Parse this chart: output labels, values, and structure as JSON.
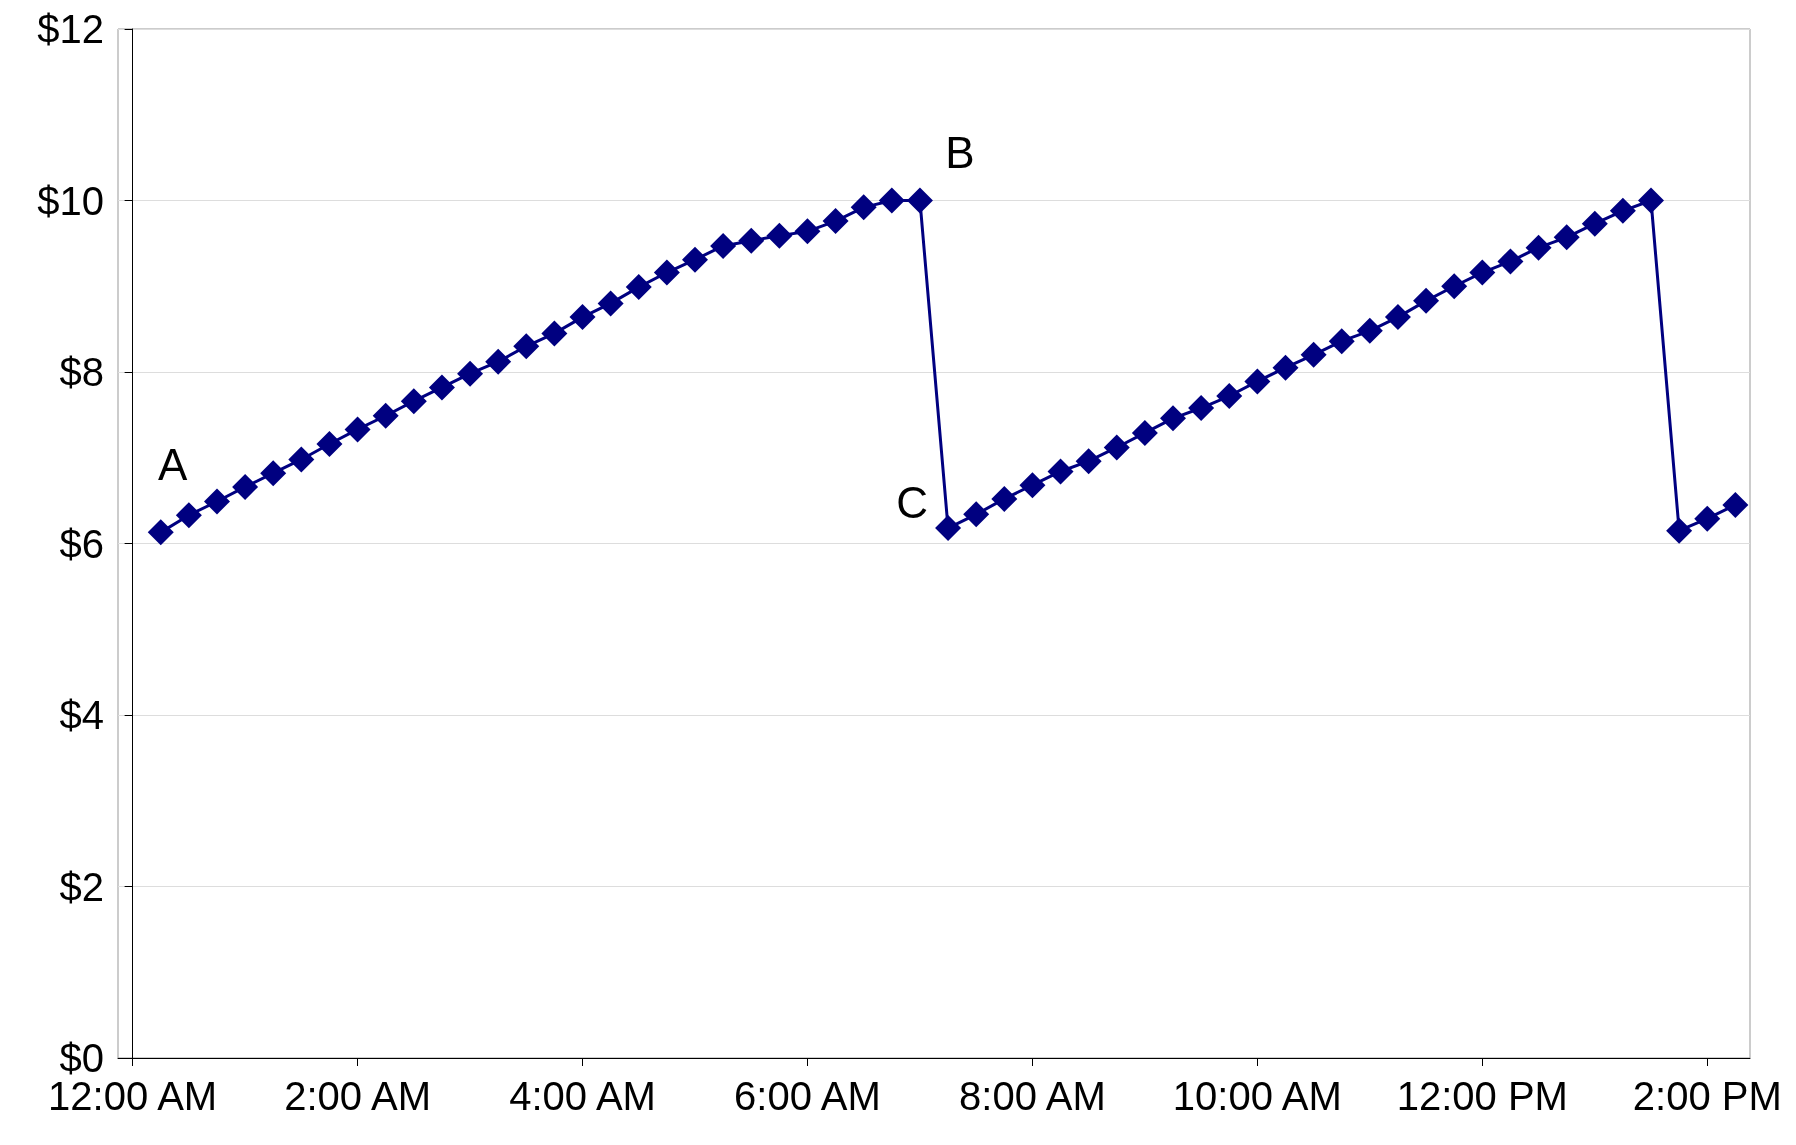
{
  "chart_data": {
    "type": "line",
    "marker": "diamond",
    "line_style": "solid",
    "grid": "y",
    "x": [
      0.25,
      0.5,
      0.75,
      1,
      1.25,
      1.5,
      1.75,
      2,
      2.25,
      2.5,
      2.75,
      3,
      3.25,
      3.5,
      3.75,
      4,
      4.25,
      4.5,
      4.75,
      5,
      5.25,
      5.5,
      5.75,
      6,
      6.25,
      6.5,
      6.75,
      7,
      7.25,
      7.5,
      7.75,
      8,
      8.25,
      8.5,
      8.75,
      9,
      9.25,
      9.5,
      9.75,
      10,
      10.25,
      10.5,
      10.75,
      11,
      11.25,
      11.5,
      11.75,
      12,
      12.25,
      12.5,
      12.75,
      13,
      13.25,
      13.5,
      13.75,
      14,
      14.25
    ],
    "series": [
      {
        "color": "#000080",
        "values": [
          6.13,
          6.33,
          6.49,
          6.66,
          6.82,
          6.98,
          7.16,
          7.33,
          7.49,
          7.66,
          7.82,
          7.98,
          8.12,
          8.3,
          8.45,
          8.64,
          8.8,
          8.99,
          9.16,
          9.31,
          9.47,
          9.53,
          9.59,
          9.64,
          9.76,
          9.92,
          10.0,
          10.0,
          6.18,
          6.34,
          6.52,
          6.68,
          6.84,
          6.96,
          7.12,
          7.29,
          7.46,
          7.58,
          7.72,
          7.89,
          8.05,
          8.2,
          8.36,
          8.48,
          8.64,
          8.83,
          9.0,
          9.16,
          9.29,
          9.45,
          9.57,
          9.73,
          9.88,
          10.0,
          6.15,
          6.29,
          6.45
        ]
      }
    ],
    "xlim": [
      -0.13,
      14.38
    ],
    "xticks": [
      {
        "value": 0,
        "label": "12:00 AM"
      },
      {
        "value": 2,
        "label": "2:00 AM"
      },
      {
        "value": 4,
        "label": "4:00 AM"
      },
      {
        "value": 6,
        "label": "6:00 AM"
      },
      {
        "value": 8,
        "label": "8:00 AM"
      },
      {
        "value": 10,
        "label": "10:00 AM"
      },
      {
        "value": 12,
        "label": "12:00 PM"
      },
      {
        "value": 14,
        "label": "2:00 PM"
      }
    ],
    "ylim": [
      0,
      12
    ],
    "yticks": [
      {
        "value": 0,
        "label": "$0"
      },
      {
        "value": 2,
        "label": "$2"
      },
      {
        "value": 4,
        "label": "$4"
      },
      {
        "value": 6,
        "label": "$6"
      },
      {
        "value": 8,
        "label": "$8"
      },
      {
        "value": 10,
        "label": "$10"
      },
      {
        "value": 12,
        "label": "$12"
      }
    ],
    "annotations": [
      {
        "text": "A",
        "x": 0.25,
        "y": 6.13
      },
      {
        "text": "B",
        "x": 7,
        "y": 10.0
      },
      {
        "text": "C",
        "x": 7.25,
        "y": 6.18
      }
    ]
  }
}
